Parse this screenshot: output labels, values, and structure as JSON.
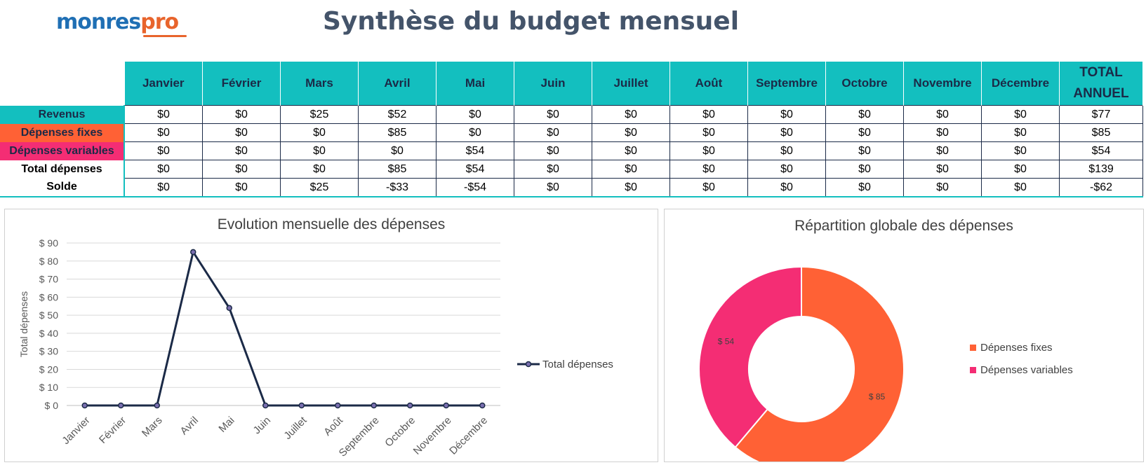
{
  "header": {
    "logo_main": "monres",
    "logo_accent": "pro",
    "title": "Synthèse du budget mensuel"
  },
  "table": {
    "months": [
      "Janvier",
      "Février",
      "Mars",
      "Avril",
      "Mai",
      "Juin",
      "Juillet",
      "Août",
      "Septembre",
      "Octobre",
      "Novembre",
      "Décembre"
    ],
    "total_header_line1": "TOTAL",
    "total_header_line2": "ANNUEL",
    "rows": [
      {
        "label": "Revenus",
        "values": [
          "$0",
          "$0",
          "$25",
          "$52",
          "$0",
          "$0",
          "$0",
          "$0",
          "$0",
          "$0",
          "$0",
          "$0"
        ],
        "total": "$77"
      },
      {
        "label": "Dépenses fixes",
        "values": [
          "$0",
          "$0",
          "$0",
          "$85",
          "$0",
          "$0",
          "$0",
          "$0",
          "$0",
          "$0",
          "$0",
          "$0"
        ],
        "total": "$85"
      },
      {
        "label": "Dépenses variables",
        "values": [
          "$0",
          "$0",
          "$0",
          "$0",
          "$54",
          "$0",
          "$0",
          "$0",
          "$0",
          "$0",
          "$0",
          "$0"
        ],
        "total": "$54"
      },
      {
        "label": "Total dépenses",
        "values": [
          "$0",
          "$0",
          "$0",
          "$85",
          "$54",
          "$0",
          "$0",
          "$0",
          "$0",
          "$0",
          "$0",
          "$0"
        ],
        "total": "$139"
      },
      {
        "label": "Solde",
        "values": [
          "$0",
          "$0",
          "$25",
          "-$33",
          "-$54",
          "$0",
          "$0",
          "$0",
          "$0",
          "$0",
          "$0",
          "$0"
        ],
        "total": "-$62"
      }
    ]
  },
  "colors": {
    "teal": "#13bfbf",
    "fixed": "#ff6135",
    "variable": "#f42d74",
    "navy": "#1b2a47"
  },
  "chart_data": [
    {
      "type": "line",
      "title": "Evolution mensuelle des dépenses",
      "xlabel": "",
      "ylabel": "Total dépenses",
      "categories": [
        "Janvier",
        "Février",
        "Mars",
        "Avril",
        "Mai",
        "Juin",
        "Juillet",
        "Août",
        "Septembre",
        "Octobre",
        "Novembre",
        "Décembre"
      ],
      "series": [
        {
          "name": "Total dépenses",
          "values": [
            0,
            0,
            0,
            85,
            54,
            0,
            0,
            0,
            0,
            0,
            0,
            0
          ]
        }
      ],
      "ylim": [
        0,
        90
      ],
      "yticks": [
        0,
        10,
        20,
        30,
        40,
        50,
        60,
        70,
        80,
        90
      ],
      "ytick_labels": [
        "$ 0",
        "$ 10",
        "$ 20",
        "$ 30",
        "$ 40",
        "$ 50",
        "$ 60",
        "$ 70",
        "$ 80",
        "$ 90"
      ],
      "grid": true,
      "legend": "right"
    },
    {
      "type": "pie",
      "title": "Répartition globale des dépenses",
      "donut": true,
      "categories": [
        "Dépenses fixes",
        "Dépenses variables"
      ],
      "values": [
        85,
        54
      ],
      "data_labels": [
        "$ 85",
        "$ 54"
      ],
      "legend": "right"
    }
  ]
}
